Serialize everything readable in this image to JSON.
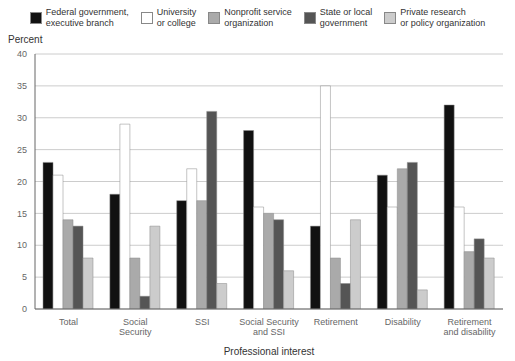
{
  "chart_data": {
    "type": "bar",
    "categories": [
      "Total",
      "Social\nSecurity",
      "SSI",
      "Social Security\nand SSI",
      "Retirement",
      "Disability",
      "Retirement\nand disability"
    ],
    "series": [
      {
        "name": "Federal government,\nexecutive branch",
        "color": "#111111",
        "values": [
          23,
          18,
          17,
          28,
          13,
          21,
          32
        ]
      },
      {
        "name": "University\nor college",
        "color": "#ffffff",
        "values": [
          21,
          29,
          22,
          16,
          35,
          16,
          16
        ]
      },
      {
        "name": "Nonprofit service\norganization",
        "color": "#aaaaaa",
        "values": [
          14,
          8,
          17,
          15,
          8,
          22,
          9
        ]
      },
      {
        "name": "State or local\ngovernment",
        "color": "#555555",
        "values": [
          13,
          2,
          31,
          14,
          4,
          23,
          11
        ]
      },
      {
        "name": "Private research\nor policy organization",
        "color": "#cccccc",
        "values": [
          8,
          13,
          4,
          6,
          14,
          3,
          8
        ]
      }
    ],
    "xlabel": "Professional interest",
    "ylabel": "Percent",
    "ylim": [
      0,
      40
    ],
    "yticks": [
      0,
      5,
      10,
      15,
      20,
      25,
      30,
      35,
      40
    ],
    "grid": true,
    "legend": "top"
  }
}
